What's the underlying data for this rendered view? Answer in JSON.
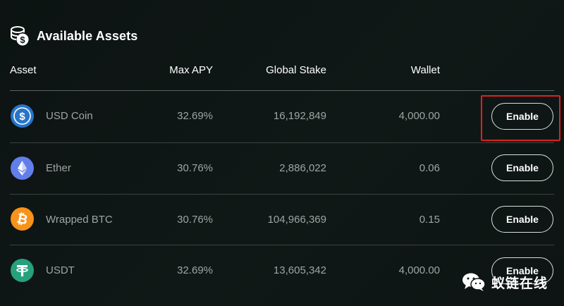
{
  "header": {
    "title": "Available Assets",
    "icon": "coins-icon"
  },
  "columns": {
    "asset": "Asset",
    "max_apy": "Max APY",
    "global_stake": "Global Stake",
    "wallet": "Wallet"
  },
  "assets": [
    {
      "name": "USD Coin",
      "icon": "usdc-icon",
      "icon_color": "#2775ca",
      "max_apy": "32.69%",
      "global_stake": "16,192,849",
      "wallet": "4,000.00",
      "action": "Enable",
      "highlighted": true
    },
    {
      "name": "Ether",
      "icon": "ether-icon",
      "icon_color": "#627eea",
      "max_apy": "30.76%",
      "global_stake": "2,886,022",
      "wallet": "0.06",
      "action": "Enable",
      "highlighted": false
    },
    {
      "name": "Wrapped BTC",
      "icon": "wbtc-icon",
      "icon_color": "#f7931a",
      "max_apy": "30.76%",
      "global_stake": "104,966,369",
      "wallet": "0.15",
      "action": "Enable",
      "highlighted": false
    },
    {
      "name": "USDT",
      "icon": "usdt-icon",
      "icon_color": "#26a17b",
      "max_apy": "32.69%",
      "global_stake": "13,605,342",
      "wallet": "4,000.00",
      "action": "Enable",
      "highlighted": false
    }
  ],
  "annotation": {
    "highlight_color": "#e0201c"
  },
  "watermark": {
    "text": "蚁链在线",
    "icon": "wechat-icon"
  }
}
